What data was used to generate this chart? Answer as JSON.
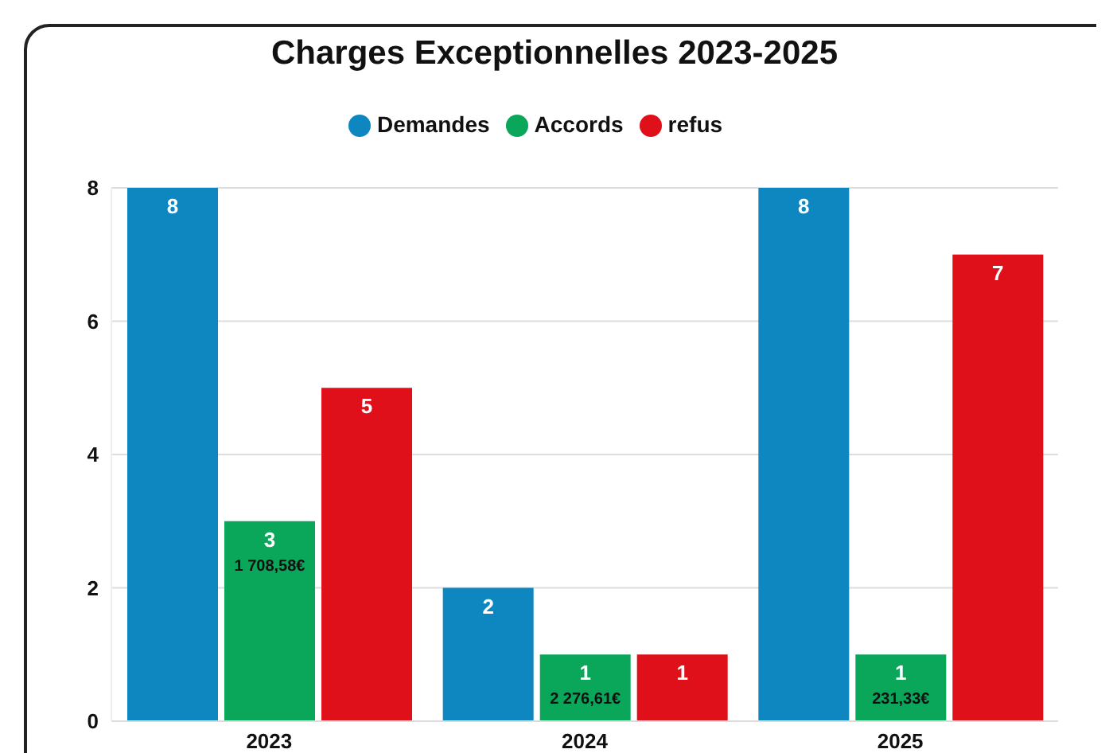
{
  "chart_data": {
    "type": "bar",
    "title": "Charges Exceptionnelles 2023-2025",
    "categories": [
      "2023",
      "2024",
      "2025"
    ],
    "series": [
      {
        "name": "Demandes",
        "color": "#0e87c0",
        "values": [
          8,
          2,
          8
        ]
      },
      {
        "name": "Accords",
        "color": "#0aa65a",
        "values": [
          3,
          1,
          1
        ]
      },
      {
        "name": "refus",
        "color": "#e0101a",
        "values": [
          5,
          1,
          7
        ]
      }
    ],
    "ylim": [
      0,
      8
    ],
    "yticks": [
      0,
      2,
      4,
      6,
      8
    ],
    "grid": "y",
    "legend": "top",
    "data_labels": true,
    "annotations": [
      {
        "text": "1 708,58€",
        "x": "2023",
        "y": 3
      },
      {
        "text": "2 276,61€",
        "x": "2024",
        "y": 1
      },
      {
        "text": "231,33€",
        "x": "2025",
        "y": 1
      }
    ]
  }
}
